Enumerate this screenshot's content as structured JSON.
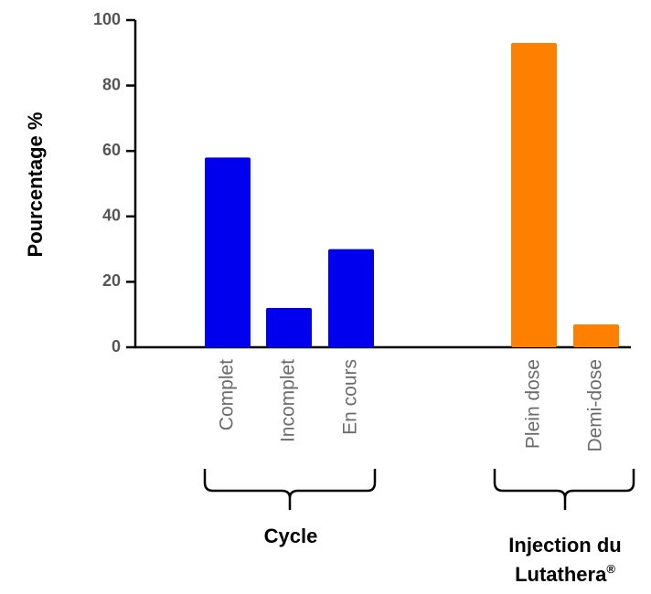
{
  "chart_data": {
    "type": "bar",
    "title": "",
    "xlabel": "",
    "ylabel": "Pourcentage %",
    "ylim": [
      0,
      100
    ],
    "yticks": [
      "0",
      "20",
      "40",
      "60",
      "80",
      "100"
    ],
    "grid": false,
    "groups": [
      {
        "label": "Cycle",
        "color": "#0000ee",
        "categories": [
          "Complet",
          "Incomplet",
          "En cours"
        ],
        "values": [
          58,
          12,
          30
        ]
      },
      {
        "label_line1": "Injection du",
        "label_line2": "Lutathera",
        "label_mark": "®",
        "color": "#ff7f00",
        "categories": [
          "Plein dose",
          "Demi-dose"
        ],
        "values": [
          93,
          7
        ]
      }
    ]
  }
}
